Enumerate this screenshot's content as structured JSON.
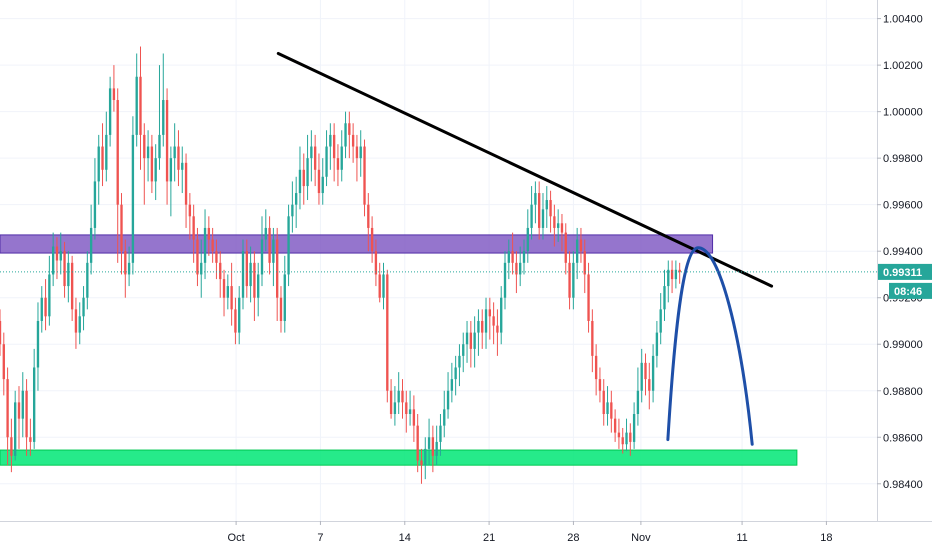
{
  "chart_data": {
    "type": "candlestick",
    "colors": {
      "up": "#26a69a",
      "down": "#ef5350",
      "trendline": "#000000",
      "resistance_zone": "#7e57c2",
      "support_zone": "#00e676",
      "projection": "#1e4fa8",
      "last_price": "#26a69a",
      "grid": "#f0f3fa"
    },
    "y_axis": {
      "range": [
        0.9824,
        1.0048
      ],
      "ticks": [
        "1.00400",
        "1.00200",
        "1.00000",
        "0.99800",
        "0.99600",
        "0.99400",
        "0.99200",
        "0.99000",
        "0.98800",
        "0.98600",
        "0.98400"
      ]
    },
    "x_axis": {
      "range": [
        -28,
        76
      ],
      "ticks": [
        {
          "label": "Oct",
          "x": 0
        },
        {
          "label": "7",
          "x": 10
        },
        {
          "label": "14",
          "x": 20
        },
        {
          "label": "21",
          "x": 30
        },
        {
          "label": "28",
          "x": 40
        },
        {
          "label": "Nov",
          "x": 48
        },
        {
          "label": "11",
          "x": 60
        },
        {
          "label": "18",
          "x": 70
        }
      ]
    },
    "last_price": {
      "value": 0.99311,
      "label": "0.99311",
      "countdown": "08:46"
    },
    "trendline": {
      "from": {
        "x": 5,
        "y": 1.0025
      },
      "to": {
        "x": 63.5,
        "y": 0.9925
      }
    },
    "resistance_zone": {
      "x_start": -28,
      "x_end": 56.5,
      "y_low": 0.99392,
      "y_high": 0.9947
    },
    "support_zone": {
      "x_start": -28,
      "x_end": 66.5,
      "y_low": 0.9848,
      "y_high": 0.98545
    },
    "projection": {
      "start": {
        "x": 51.2,
        "y": 0.9859
      },
      "peak": {
        "x": 54.8,
        "y": 0.99415
      },
      "end": {
        "x": 61.2,
        "y": 0.9857
      }
    },
    "candles": [
      [
        0.991,
        0.99,
        0.9915,
        0.9895
      ],
      [
        0.99,
        0.9885,
        0.9905,
        0.9878
      ],
      [
        0.9885,
        0.986,
        0.989,
        0.9848
      ],
      [
        0.986,
        0.9852,
        0.9868,
        0.9845
      ],
      [
        0.9852,
        0.9875,
        0.988,
        0.985
      ],
      [
        0.9875,
        0.9868,
        0.9882,
        0.9855
      ],
      [
        0.9868,
        0.988,
        0.9888,
        0.986
      ],
      [
        0.988,
        0.986,
        0.9885,
        0.9852
      ],
      [
        0.986,
        0.9858,
        0.9868,
        0.9852
      ],
      [
        0.9858,
        0.989,
        0.9898,
        0.9855
      ],
      [
        0.989,
        0.991,
        0.9918,
        0.988
      ],
      [
        0.991,
        0.992,
        0.9925,
        0.9905
      ],
      [
        0.992,
        0.9912,
        0.9928,
        0.9906
      ],
      [
        0.9912,
        0.993,
        0.9938,
        0.9908
      ],
      [
        0.993,
        0.9942,
        0.9948,
        0.9925
      ],
      [
        0.9942,
        0.9936,
        0.9946,
        0.9928
      ],
      [
        0.9936,
        0.994,
        0.9948,
        0.993
      ],
      [
        0.994,
        0.9925,
        0.9944,
        0.992
      ],
      [
        0.9925,
        0.9935,
        0.994,
        0.9918
      ],
      [
        0.9935,
        0.9915,
        0.9938,
        0.991
      ],
      [
        0.9915,
        0.9905,
        0.992,
        0.9898
      ],
      [
        0.9905,
        0.9912,
        0.9918,
        0.99
      ],
      [
        0.9912,
        0.992,
        0.9925,
        0.9906
      ],
      [
        0.992,
        0.9935,
        0.994,
        0.9915
      ],
      [
        0.9935,
        0.995,
        0.996,
        0.993
      ],
      [
        0.995,
        0.997,
        0.998,
        0.9945
      ],
      [
        0.997,
        0.9985,
        0.999,
        0.996
      ],
      [
        0.9985,
        0.9975,
        0.9995,
        0.9968
      ],
      [
        0.9975,
        0.999,
        1.0,
        0.997
      ],
      [
        0.999,
        1.001,
        1.0015,
        0.9985
      ],
      [
        1.001,
        1.0005,
        1.002,
        1.0
      ],
      [
        1.0005,
        0.996,
        1.001,
        0.9935
      ],
      [
        0.996,
        0.994,
        0.9965,
        0.993
      ],
      [
        0.994,
        0.993,
        0.9945,
        0.992
      ],
      [
        0.993,
        0.9935,
        0.9942,
        0.9925
      ],
      [
        0.9935,
        0.999,
        0.9998,
        0.993
      ],
      [
        0.999,
        1.0015,
        1.0025,
        0.9985
      ],
      [
        1.0015,
        0.999,
        1.0028,
        0.9975
      ],
      [
        0.999,
        0.998,
        0.9995,
        0.996
      ],
      [
        0.998,
        0.9985,
        0.9992,
        0.997
      ],
      [
        0.9985,
        0.997,
        0.999,
        0.9965
      ],
      [
        0.997,
        0.998,
        0.9986,
        0.9962
      ],
      [
        0.998,
        0.999,
        1.002,
        0.9975
      ],
      [
        0.999,
        1.0005,
        1.0025,
        0.9985
      ],
      [
        1.0005,
        0.997,
        1.001,
        0.996
      ],
      [
        0.997,
        0.998,
        0.9985,
        0.9955
      ],
      [
        0.998,
        0.9985,
        0.9995,
        0.997
      ],
      [
        0.9985,
        0.9975,
        0.9992,
        0.9968
      ],
      [
        0.9975,
        0.9978,
        0.9985,
        0.9965
      ],
      [
        0.9978,
        0.996,
        0.9982,
        0.995
      ],
      [
        0.996,
        0.9955,
        0.9965,
        0.9945
      ],
      [
        0.9955,
        0.9945,
        0.996,
        0.9935
      ],
      [
        0.9945,
        0.993,
        0.995,
        0.9925
      ],
      [
        0.993,
        0.9935,
        0.9945,
        0.992
      ],
      [
        0.9935,
        0.995,
        0.9958,
        0.9928
      ],
      [
        0.995,
        0.9945,
        0.9955,
        0.9938
      ],
      [
        0.9945,
        0.994,
        0.995,
        0.9935
      ],
      [
        0.994,
        0.9935,
        0.9945,
        0.9928
      ],
      [
        0.9935,
        0.9928,
        0.994,
        0.992
      ],
      [
        0.9928,
        0.992,
        0.9932,
        0.9912
      ],
      [
        0.992,
        0.9925,
        0.993,
        0.9915
      ],
      [
        0.9925,
        0.9915,
        0.9935,
        0.9908
      ],
      [
        0.9915,
        0.9905,
        0.992,
        0.99
      ],
      [
        0.9905,
        0.992,
        0.9925,
        0.99
      ],
      [
        0.992,
        0.994,
        0.9945,
        0.9915
      ],
      [
        0.994,
        0.9925,
        0.9945,
        0.992
      ],
      [
        0.9925,
        0.9935,
        0.9942,
        0.9918
      ],
      [
        0.9935,
        0.992,
        0.994,
        0.991
      ],
      [
        0.992,
        0.993,
        0.9935,
        0.9912
      ],
      [
        0.993,
        0.9945,
        0.9955,
        0.9925
      ],
      [
        0.9945,
        0.995,
        0.9958,
        0.994
      ],
      [
        0.995,
        0.9935,
        0.9955,
        0.993
      ],
      [
        0.9935,
        0.9945,
        0.995,
        0.9925
      ],
      [
        0.9945,
        0.992,
        0.995,
        0.991
      ],
      [
        0.992,
        0.991,
        0.9925,
        0.9905
      ],
      [
        0.991,
        0.993,
        0.9938,
        0.9905
      ],
      [
        0.993,
        0.9955,
        0.996,
        0.9925
      ],
      [
        0.9955,
        0.996,
        0.997,
        0.9948
      ],
      [
        0.996,
        0.9965,
        0.9972,
        0.995
      ],
      [
        0.9965,
        0.9975,
        0.9985,
        0.9958
      ],
      [
        0.9975,
        0.9968,
        0.9982,
        0.996
      ],
      [
        0.9968,
        0.998,
        0.999,
        0.9962
      ],
      [
        0.998,
        0.9985,
        0.9992,
        0.997
      ],
      [
        0.9985,
        0.9975,
        0.999,
        0.9968
      ],
      [
        0.9975,
        0.9965,
        0.9982,
        0.996
      ],
      [
        0.9965,
        0.9972,
        0.998,
        0.996
      ],
      [
        0.9972,
        0.9985,
        0.9992,
        0.9968
      ],
      [
        0.9985,
        0.999,
        0.9995,
        0.9975
      ],
      [
        0.999,
        0.998,
        0.9995,
        0.997
      ],
      [
        0.998,
        0.9975,
        0.9986,
        0.9968
      ],
      [
        0.9975,
        0.9985,
        0.9992,
        0.997
      ],
      [
        0.9985,
        0.9995,
        1.0,
        0.998
      ],
      [
        0.9995,
        0.999,
        1.0,
        0.998
      ],
      [
        0.999,
        0.9985,
        0.9995,
        0.9978
      ],
      [
        0.9985,
        0.998,
        0.999,
        0.997
      ],
      [
        0.998,
        0.9985,
        0.9992,
        0.9972
      ],
      [
        0.9985,
        0.996,
        0.9988,
        0.9955
      ],
      [
        0.996,
        0.995,
        0.9965,
        0.994
      ],
      [
        0.995,
        0.994,
        0.9955,
        0.9935
      ],
      [
        0.994,
        0.993,
        0.9945,
        0.9925
      ],
      [
        0.993,
        0.992,
        0.9935,
        0.9918
      ],
      [
        0.992,
        0.993,
        0.9935,
        0.9915
      ],
      [
        0.993,
        0.988,
        0.9932,
        0.9875
      ],
      [
        0.988,
        0.987,
        0.9885,
        0.9868
      ],
      [
        0.987,
        0.9875,
        0.9882,
        0.9865
      ],
      [
        0.9875,
        0.988,
        0.9888,
        0.987
      ],
      [
        0.988,
        0.9875,
        0.9885,
        0.9868
      ],
      [
        0.9875,
        0.987,
        0.988,
        0.9862
      ],
      [
        0.987,
        0.9872,
        0.988,
        0.9865
      ],
      [
        0.9872,
        0.9865,
        0.9878,
        0.9858
      ],
      [
        0.9865,
        0.985,
        0.987,
        0.9845
      ],
      [
        0.985,
        0.9848,
        0.9855,
        0.984
      ],
      [
        0.9848,
        0.9855,
        0.986,
        0.9842
      ],
      [
        0.9855,
        0.986,
        0.9868,
        0.9848
      ],
      [
        0.986,
        0.9852,
        0.9865,
        0.9845
      ],
      [
        0.9852,
        0.9858,
        0.9865,
        0.9848
      ],
      [
        0.9858,
        0.9865,
        0.987,
        0.9852
      ],
      [
        0.9865,
        0.9872,
        0.988,
        0.986
      ],
      [
        0.9872,
        0.988,
        0.9888,
        0.9868
      ],
      [
        0.988,
        0.9885,
        0.9892,
        0.9875
      ],
      [
        0.9885,
        0.989,
        0.9895,
        0.9878
      ],
      [
        0.989,
        0.9895,
        0.99,
        0.9882
      ],
      [
        0.9895,
        0.99,
        0.9905,
        0.9888
      ],
      [
        0.99,
        0.9905,
        0.991,
        0.9892
      ],
      [
        0.9905,
        0.9898,
        0.991,
        0.989
      ],
      [
        0.9898,
        0.9905,
        0.9912,
        0.989
      ],
      [
        0.9905,
        0.991,
        0.9915,
        0.9895
      ],
      [
        0.991,
        0.9905,
        0.9915,
        0.9898
      ],
      [
        0.9905,
        0.9915,
        0.992,
        0.9898
      ],
      [
        0.9915,
        0.9912,
        0.992,
        0.9902
      ],
      [
        0.9912,
        0.9908,
        0.9918,
        0.99
      ],
      [
        0.9908,
        0.9905,
        0.9915,
        0.9895
      ],
      [
        0.9905,
        0.992,
        0.9925,
        0.99
      ],
      [
        0.992,
        0.9935,
        0.994,
        0.9915
      ],
      [
        0.9935,
        0.994,
        0.9945,
        0.9928
      ],
      [
        0.994,
        0.9935,
        0.9948,
        0.993
      ],
      [
        0.9935,
        0.993,
        0.994,
        0.9922
      ],
      [
        0.993,
        0.9935,
        0.9942,
        0.9925
      ],
      [
        0.9935,
        0.994,
        0.9945,
        0.993
      ],
      [
        0.994,
        0.995,
        0.9958,
        0.9935
      ],
      [
        0.995,
        0.996,
        0.9968,
        0.9945
      ],
      [
        0.996,
        0.9965,
        0.997,
        0.9952
      ],
      [
        0.9965,
        0.995,
        0.997,
        0.9945
      ],
      [
        0.995,
        0.9958,
        0.9965,
        0.9945
      ],
      [
        0.9958,
        0.9962,
        0.9968,
        0.995
      ],
      [
        0.9962,
        0.9955,
        0.9966,
        0.9948
      ],
      [
        0.9955,
        0.995,
        0.996,
        0.9942
      ],
      [
        0.995,
        0.9952,
        0.9958,
        0.9944
      ],
      [
        0.9952,
        0.9948,
        0.9956,
        0.994
      ],
      [
        0.9948,
        0.9935,
        0.9952,
        0.993
      ],
      [
        0.9935,
        0.992,
        0.994,
        0.9915
      ],
      [
        0.992,
        0.9935,
        0.994,
        0.9915
      ],
      [
        0.9935,
        0.9945,
        0.995,
        0.9928
      ],
      [
        0.9945,
        0.994,
        0.995,
        0.9935
      ],
      [
        0.994,
        0.993,
        0.9945,
        0.9922
      ],
      [
        0.993,
        0.991,
        0.9935,
        0.9905
      ],
      [
        0.991,
        0.9895,
        0.9915,
        0.9888
      ],
      [
        0.9895,
        0.9885,
        0.99,
        0.9878
      ],
      [
        0.9885,
        0.988,
        0.989,
        0.9875
      ],
      [
        0.988,
        0.987,
        0.9885,
        0.9865
      ],
      [
        0.987,
        0.9875,
        0.9882,
        0.9865
      ],
      [
        0.9875,
        0.9868,
        0.988,
        0.9862
      ],
      [
        0.9868,
        0.9862,
        0.9872,
        0.9858
      ],
      [
        0.9862,
        0.986,
        0.9868,
        0.9855
      ],
      [
        0.986,
        0.9857,
        0.9864,
        0.9853
      ],
      [
        0.9857,
        0.9862,
        0.9868,
        0.9854
      ],
      [
        0.9862,
        0.9858,
        0.9866,
        0.9852
      ],
      [
        0.9858,
        0.987,
        0.9875,
        0.9855
      ],
      [
        0.987,
        0.988,
        0.989,
        0.9865
      ],
      [
        0.988,
        0.9892,
        0.9898,
        0.9875
      ],
      [
        0.9892,
        0.9885,
        0.9896,
        0.9878
      ],
      [
        0.9885,
        0.988,
        0.9892,
        0.9872
      ],
      [
        0.988,
        0.9895,
        0.99,
        0.9875
      ],
      [
        0.9895,
        0.9905,
        0.991,
        0.989
      ],
      [
        0.9905,
        0.9915,
        0.9922,
        0.99
      ],
      [
        0.9915,
        0.9925,
        0.9932,
        0.991
      ],
      [
        0.9925,
        0.9932,
        0.9936,
        0.9918
      ],
      [
        0.9932,
        0.9928,
        0.9936,
        0.9922
      ],
      [
        0.9928,
        0.9932,
        0.9936,
        0.9924
      ],
      [
        0.9932,
        0.9931,
        0.9935,
        0.9926
      ]
    ]
  }
}
